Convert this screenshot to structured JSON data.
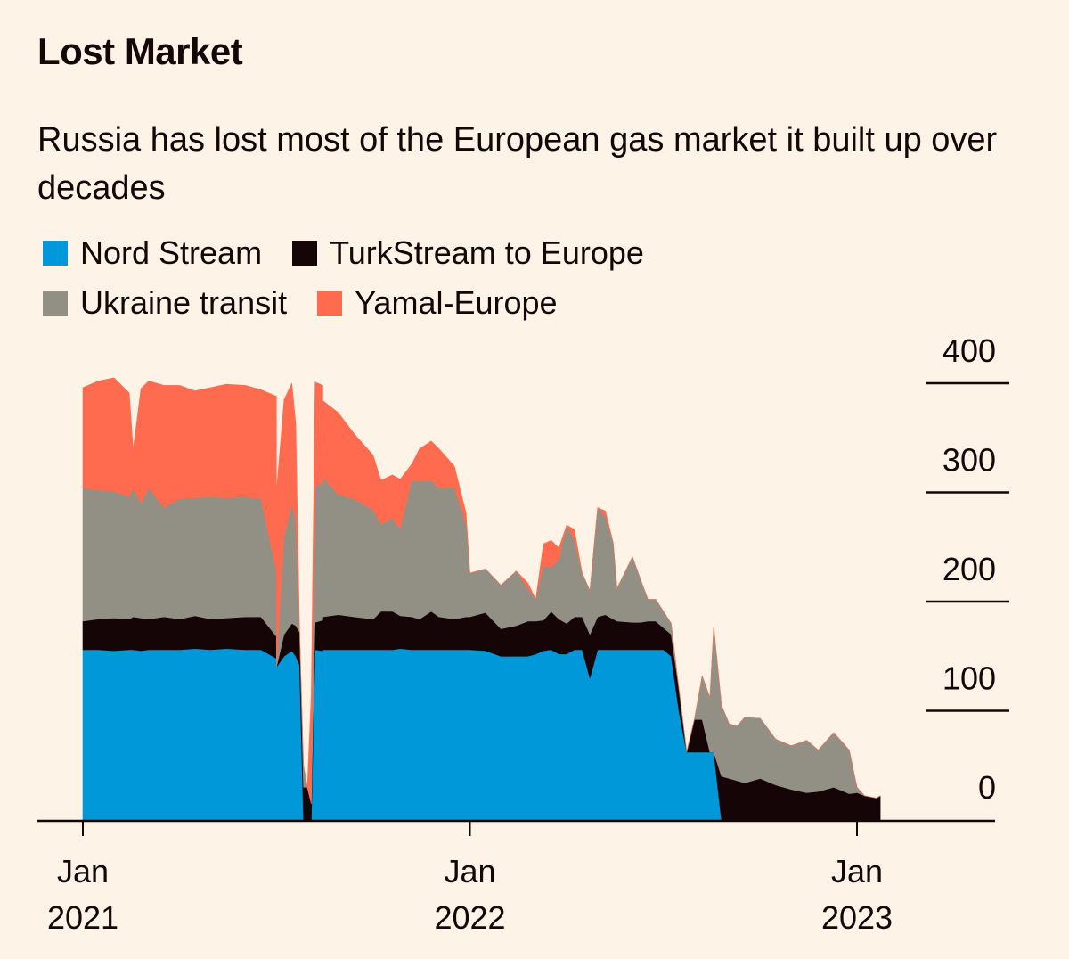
{
  "title": "Lost Market",
  "subtitle": "Russia has lost most of the European gas market it built up over decades",
  "legend": [
    {
      "label": "Nord Stream",
      "color": "#0098d8"
    },
    {
      "label": "TurkStream to Europe",
      "color": "#150506"
    },
    {
      "label": "Ukraine transit",
      "color": "#929084"
    },
    {
      "label": "Yamal-Europe",
      "color": "#ff6b4f"
    }
  ],
  "chart_data": {
    "type": "area",
    "stacked": true,
    "title": "Lost Market",
    "subtitle": "Russia has lost most of the European gas market it built up over decades",
    "xlabel": "",
    "ylabel": "",
    "ylim": [
      0,
      400
    ],
    "y_ticks": [
      "400",
      "300",
      "200",
      "100",
      "0"
    ],
    "y_tick_values": [
      400,
      300,
      200,
      100,
      0
    ],
    "y_axis_side": "right",
    "grid": false,
    "legend_position": "top-left",
    "x_ticks": [
      {
        "line1": "Jan",
        "line2": "2021",
        "value": 2021.0
      },
      {
        "line1": "Jan",
        "line2": "2022",
        "value": 2022.0
      },
      {
        "line1": "Jan",
        "line2": "2023",
        "value": 2023.0
      }
    ],
    "x_range": [
      2020.97,
      2023.36
    ],
    "x": [
      2021.0,
      2021.04,
      2021.08,
      2021.12,
      2021.13,
      2021.15,
      2021.17,
      2021.21,
      2021.25,
      2021.29,
      2021.33,
      2021.37,
      2021.42,
      2021.46,
      2021.5,
      2021.5,
      2021.52,
      2021.54,
      2021.55,
      2021.56,
      2021.57,
      2021.58,
      2021.59,
      2021.6,
      2021.62,
      2021.62,
      2021.66,
      2021.7,
      2021.75,
      2021.77,
      2021.8,
      2021.82,
      2021.85,
      2021.87,
      2021.9,
      2021.92,
      2021.96,
      2021.99,
      2022.0,
      2022.04,
      2022.08,
      2022.12,
      2022.15,
      2022.17,
      2022.19,
      2022.21,
      2022.23,
      2022.25,
      2022.27,
      2022.29,
      2022.31,
      2022.33,
      2022.35,
      2022.37,
      2022.38,
      2022.42,
      2022.44,
      2022.46,
      2022.48,
      2022.5,
      2022.52,
      2022.54,
      2022.56,
      2022.58,
      2022.6,
      2022.62,
      2022.63,
      2022.65,
      2022.67,
      2022.69,
      2022.71,
      2022.75,
      2022.79,
      2022.83,
      2022.87,
      2022.9,
      2022.94,
      2022.98,
      2023.0,
      2023.02,
      2023.05,
      2023.06
    ],
    "series": [
      {
        "name": "Nord Stream",
        "color": "#0098d8",
        "values": [
          156,
          156,
          155,
          156,
          156,
          155,
          156,
          156,
          156,
          157,
          156,
          157,
          156,
          156,
          148,
          140,
          150,
          155,
          150,
          142,
          0,
          0,
          0,
          156,
          155,
          156,
          156,
          156,
          156,
          156,
          156,
          157,
          156,
          156,
          156,
          156,
          156,
          156,
          156,
          155,
          150,
          150,
          150,
          152,
          155,
          156,
          152,
          152,
          156,
          156,
          130,
          156,
          156,
          156,
          156,
          156,
          156,
          156,
          156,
          156,
          150,
          100,
          62,
          62,
          62,
          62,
          62,
          0,
          0,
          0,
          0,
          0,
          0,
          0,
          0,
          0,
          0,
          0,
          0,
          0,
          0,
          0
        ]
      },
      {
        "name": "TurkStream to Europe",
        "color": "#150506",
        "values": [
          26,
          28,
          30,
          28,
          30,
          30,
          28,
          30,
          28,
          30,
          28,
          28,
          30,
          30,
          20,
          0,
          20,
          25,
          28,
          30,
          30,
          30,
          15,
          25,
          28,
          30,
          32,
          30,
          28,
          35,
          35,
          30,
          30,
          28,
          35,
          30,
          28,
          30,
          30,
          35,
          25,
          28,
          32,
          30,
          28,
          35,
          32,
          28,
          30,
          30,
          40,
          30,
          32,
          28,
          26,
          25,
          25,
          26,
          26,
          20,
          20,
          20,
          0,
          30,
          30,
          0,
          0,
          40,
          38,
          36,
          34,
          38,
          32,
          28,
          25,
          26,
          30,
          24,
          25,
          22,
          20,
          22
        ]
      },
      {
        "name": "Ukraine transit",
        "color": "#929084",
        "values": [
          122,
          118,
          116,
          112,
          118,
          105,
          120,
          100,
          110,
          108,
          112,
          110,
          110,
          108,
          60,
          0,
          90,
          110,
          95,
          0,
          20,
          0,
          0,
          125,
          125,
          128,
          110,
          108,
          100,
          80,
          85,
          80,
          125,
          126,
          120,
          118,
          120,
          85,
          40,
          40,
          40,
          50,
          30,
          20,
          50,
          40,
          55,
          90,
          70,
          40,
          40,
          100,
          90,
          70,
          30,
          60,
          40,
          20,
          20,
          15,
          10,
          0,
          0,
          0,
          40,
          50,
          115,
          65,
          50,
          50,
          60,
          55,
          42,
          40,
          48,
          38,
          50,
          40,
          5,
          0,
          0,
          0
        ]
      },
      {
        "name": "Yamal-Europe",
        "color": "#ff6b4f",
        "values": [
          92,
          100,
          104,
          95,
          35,
          105,
          98,
          112,
          104,
          98,
          100,
          104,
          102,
          100,
          160,
          160,
          125,
          110,
          90,
          0,
          0,
          0,
          100,
          95,
          90,
          70,
          75,
          60,
          50,
          40,
          40,
          45,
          15,
          30,
          36,
          36,
          20,
          10,
          0,
          0,
          0,
          0,
          5,
          0,
          20,
          25,
          10,
          0,
          10,
          0,
          0,
          0,
          5,
          0,
          0,
          0,
          0,
          0,
          0,
          0,
          0,
          0,
          0,
          0,
          0,
          0,
          0,
          0,
          0,
          0,
          0,
          0,
          0,
          0,
          0,
          0,
          0,
          0,
          0,
          0,
          0,
          0
        ]
      }
    ]
  }
}
